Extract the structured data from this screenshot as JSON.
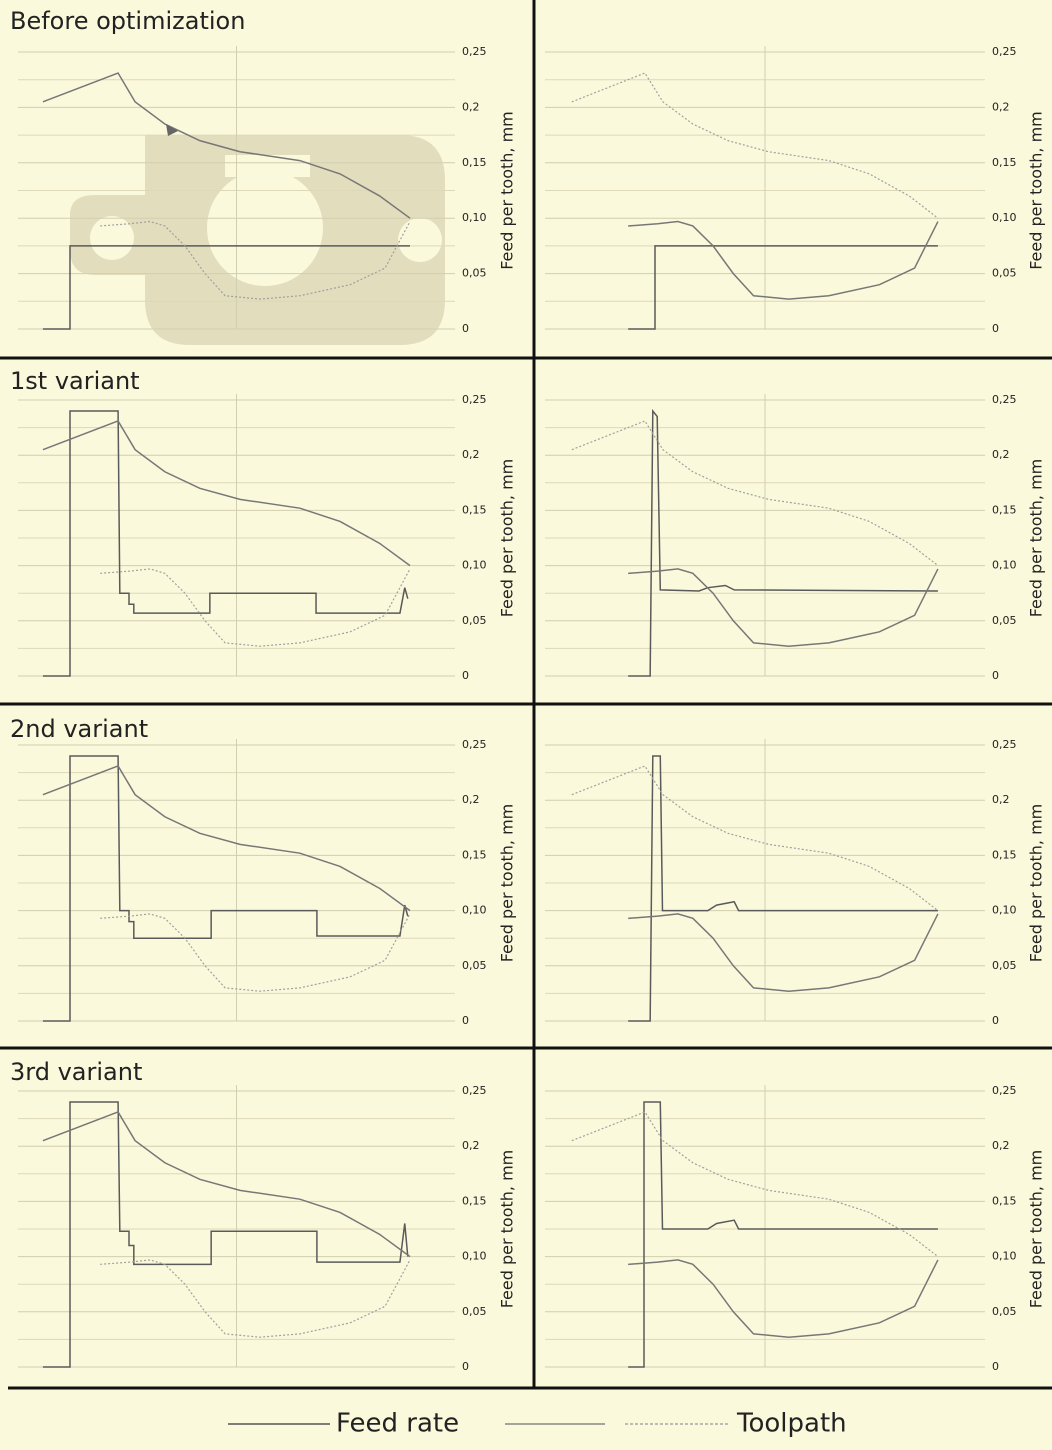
{
  "chart_data": [
    {
      "type": "line",
      "title": "Before optimization",
      "ylabel": "Feed per tooth, mm",
      "xlim": [
        0,
        100
      ],
      "ylim": [
        0,
        0.25
      ],
      "yticks": [
        0,
        {
          "value": 0.05,
          "label": "0,05"
        },
        {
          "value": 0.1,
          "label": "0,10"
        },
        {
          "value": 0.15,
          "label": "0,15"
        },
        {
          "value": 0.2,
          "label": "0,2"
        },
        {
          "value": 0.25,
          "label": "0,25"
        }
      ],
      "grid": true,
      "series": [
        {
          "name": "Feed rate",
          "color": "#5a5a5a",
          "style": "solid",
          "x": [
            5.7,
            11.9,
            11.9,
            89.7
          ],
          "values": [
            0,
            0,
            0.075,
            0.075
          ]
        },
        {
          "name": "Toolpath",
          "color": "#777777",
          "style": "solid",
          "x": [
            5.7,
            22.9,
            26.8,
            33.6,
            41.6,
            50.8,
            64.5,
            73.7,
            82.8,
            89.7
          ],
          "values": [
            0.205,
            0.231,
            0.205,
            0.185,
            0.17,
            0.16,
            0.152,
            0.14,
            0.12,
            0.1
          ]
        },
        {
          "name": "Toolpath",
          "color": "#a0a0a0",
          "style": "dotted",
          "x": [
            18.8,
            25.6,
            30.2,
            33.6,
            38.2,
            42.8,
            47.4,
            55.4,
            64.5,
            76,
            84,
            89.7
          ],
          "values": [
            0.093,
            0.095,
            0.097,
            0.093,
            0.075,
            0.05,
            0.03,
            0.027,
            0.03,
            0.04,
            0.055,
            0.097
          ]
        }
      ]
    },
    {
      "type": "line",
      "ylabel": "Feed per tooth, mm",
      "xlim": [
        0,
        100
      ],
      "ylim": [
        0,
        0.25
      ],
      "yticks": [
        0,
        {
          "value": 0.05,
          "label": "0,05"
        },
        {
          "value": 0.1,
          "label": "0,10"
        },
        {
          "value": 0.15,
          "label": "0,15"
        },
        {
          "value": 0.2,
          "label": "0,2"
        },
        {
          "value": 0.25,
          "label": "0,25"
        }
      ],
      "grid": true,
      "series": [
        {
          "name": "Feed rate",
          "color": "#5a5a5a",
          "style": "solid",
          "x": [
            18.9,
            25,
            25,
            89.3
          ],
          "values": [
            0,
            0,
            0.075,
            0.075
          ]
        },
        {
          "name": "Toolpath",
          "color": "#a0a0a0",
          "style": "dotted",
          "x": [
            6.1,
            22.7,
            26.8,
            33.6,
            41.6,
            50.8,
            64.5,
            73.7,
            82.8,
            89.3
          ],
          "values": [
            0.205,
            0.231,
            0.205,
            0.185,
            0.17,
            0.16,
            0.152,
            0.14,
            0.12,
            0.1
          ]
        },
        {
          "name": "Toolpath",
          "color": "#777777",
          "style": "solid",
          "x": [
            18.9,
            25.6,
            30.2,
            33.6,
            38.2,
            42.8,
            47.4,
            55.4,
            64.5,
            76,
            84,
            89.3
          ],
          "values": [
            0.093,
            0.095,
            0.097,
            0.093,
            0.075,
            0.05,
            0.03,
            0.027,
            0.03,
            0.04,
            0.055,
            0.097
          ]
        }
      ]
    },
    {
      "type": "line",
      "title": "1st variant",
      "ylabel": "Feed per tooth, mm",
      "xlim": [
        0,
        100
      ],
      "ylim": [
        0,
        0.25
      ],
      "yticks": [
        0,
        {
          "value": 0.05,
          "label": "0,05"
        },
        {
          "value": 0.1,
          "label": "0,10"
        },
        {
          "value": 0.15,
          "label": "0,15"
        },
        {
          "value": 0.2,
          "label": "0,2"
        },
        {
          "value": 0.25,
          "label": "0,25"
        }
      ],
      "grid": true,
      "series": [
        {
          "name": "Feed rate",
          "color": "#5a5a5a",
          "style": "solid",
          "x": [
            5.7,
            11.9,
            11.9,
            22.9,
            23.3,
            25.4,
            25.4,
            26.5,
            26.5,
            43.9,
            43.9,
            68.2,
            68.2,
            87.4,
            88.5,
            89.2
          ],
          "values": [
            0,
            0,
            0.24,
            0.24,
            0.075,
            0.075,
            0.065,
            0.065,
            0.057,
            0.057,
            0.075,
            0.075,
            0.057,
            0.057,
            0.08,
            0.07
          ]
        },
        {
          "name": "Toolpath",
          "color": "#777777",
          "style": "solid",
          "x": [
            5.7,
            22.9,
            26.8,
            33.6,
            41.6,
            50.8,
            64.5,
            73.7,
            82.8,
            89.7
          ],
          "values": [
            0.205,
            0.231,
            0.205,
            0.185,
            0.17,
            0.16,
            0.152,
            0.14,
            0.12,
            0.1
          ]
        },
        {
          "name": "Toolpath",
          "color": "#a0a0a0",
          "style": "dotted",
          "x": [
            18.8,
            25.6,
            30.2,
            33.6,
            38.2,
            42.8,
            47.4,
            55.4,
            64.5,
            76,
            84,
            89.7
          ],
          "values": [
            0.093,
            0.095,
            0.097,
            0.093,
            0.075,
            0.05,
            0.03,
            0.027,
            0.03,
            0.04,
            0.055,
            0.097
          ]
        }
      ]
    },
    {
      "type": "line",
      "ylabel": "Feed per tooth, mm",
      "xlim": [
        0,
        100
      ],
      "ylim": [
        0,
        0.25
      ],
      "yticks": [
        0,
        {
          "value": 0.05,
          "label": "0,05"
        },
        {
          "value": 0.1,
          "label": "0,10"
        },
        {
          "value": 0.15,
          "label": "0,15"
        },
        {
          "value": 0.2,
          "label": "0,2"
        },
        {
          "value": 0.25,
          "label": "0,25"
        }
      ],
      "grid": true,
      "series": [
        {
          "name": "Feed rate",
          "color": "#5a5a5a",
          "style": "solid",
          "x": [
            18.9,
            23.9,
            24.5,
            25.5,
            26.2,
            35,
            37,
            41,
            43,
            89.3
          ],
          "values": [
            0,
            0,
            0.24,
            0.235,
            0.078,
            0.077,
            0.08,
            0.082,
            0.078,
            0.077
          ]
        },
        {
          "name": "Toolpath",
          "color": "#a0a0a0",
          "style": "dotted",
          "x": [
            6.1,
            22.7,
            26.8,
            33.6,
            41.6,
            50.8,
            64.5,
            73.7,
            82.8,
            89.3
          ],
          "values": [
            0.205,
            0.231,
            0.205,
            0.185,
            0.17,
            0.16,
            0.152,
            0.14,
            0.12,
            0.1
          ]
        },
        {
          "name": "Toolpath",
          "color": "#777777",
          "style": "solid",
          "x": [
            18.9,
            25.6,
            30.2,
            33.6,
            38.2,
            42.8,
            47.4,
            55.4,
            64.5,
            76,
            84,
            89.3
          ],
          "values": [
            0.093,
            0.095,
            0.097,
            0.093,
            0.075,
            0.05,
            0.03,
            0.027,
            0.03,
            0.04,
            0.055,
            0.097
          ]
        }
      ]
    },
    {
      "type": "line",
      "title": "2nd variant",
      "ylabel": "Feed per tooth, mm",
      "xlim": [
        0,
        100
      ],
      "ylim": [
        0,
        0.25
      ],
      "yticks": [
        0,
        {
          "value": 0.05,
          "label": "0,05"
        },
        {
          "value": 0.1,
          "label": "0,10"
        },
        {
          "value": 0.15,
          "label": "0,15"
        },
        {
          "value": 0.2,
          "label": "0,2"
        },
        {
          "value": 0.25,
          "label": "0,25"
        }
      ],
      "grid": true,
      "series": [
        {
          "name": "Feed rate",
          "color": "#5a5a5a",
          "style": "solid",
          "x": [
            5.7,
            11.9,
            11.9,
            22.9,
            23.3,
            25.4,
            25.4,
            26.5,
            26.5,
            44.2,
            44.2,
            68.4,
            68.4,
            87.4,
            88.5,
            89.2
          ],
          "values": [
            0,
            0,
            0.24,
            0.24,
            0.1,
            0.1,
            0.09,
            0.09,
            0.075,
            0.075,
            0.1,
            0.1,
            0.077,
            0.077,
            0.105,
            0.095
          ]
        },
        {
          "name": "Toolpath",
          "color": "#777777",
          "style": "solid",
          "x": [
            5.7,
            22.9,
            26.8,
            33.6,
            41.6,
            50.8,
            64.5,
            73.7,
            82.8,
            89.7
          ],
          "values": [
            0.205,
            0.231,
            0.205,
            0.185,
            0.17,
            0.16,
            0.152,
            0.14,
            0.12,
            0.1
          ]
        },
        {
          "name": "Toolpath",
          "color": "#a0a0a0",
          "style": "dotted",
          "x": [
            18.8,
            25.6,
            30.2,
            33.6,
            38.2,
            42.8,
            47.4,
            55.4,
            64.5,
            76,
            84,
            89.7
          ],
          "values": [
            0.093,
            0.095,
            0.097,
            0.093,
            0.075,
            0.05,
            0.03,
            0.027,
            0.03,
            0.04,
            0.055,
            0.097
          ]
        }
      ]
    },
    {
      "type": "line",
      "ylabel": "Feed per tooth, mm",
      "xlim": [
        0,
        100
      ],
      "ylim": [
        0,
        0.25
      ],
      "yticks": [
        0,
        {
          "value": 0.05,
          "label": "0,05"
        },
        {
          "value": 0.1,
          "label": "0,10"
        },
        {
          "value": 0.15,
          "label": "0,15"
        },
        {
          "value": 0.2,
          "label": "0,2"
        },
        {
          "value": 0.25,
          "label": "0,25"
        }
      ],
      "grid": true,
      "series": [
        {
          "name": "Feed rate",
          "color": "#5a5a5a",
          "style": "solid",
          "x": [
            18.9,
            23.9,
            24.5,
            26.2,
            26.7,
            37,
            39,
            43,
            44,
            89.3
          ],
          "values": [
            0,
            0,
            0.24,
            0.24,
            0.1,
            0.1,
            0.105,
            0.108,
            0.1,
            0.1
          ]
        },
        {
          "name": "Toolpath",
          "color": "#a0a0a0",
          "style": "dotted",
          "x": [
            6.1,
            22.7,
            26.8,
            33.6,
            41.6,
            50.8,
            64.5,
            73.7,
            82.8,
            89.3
          ],
          "values": [
            0.205,
            0.231,
            0.205,
            0.185,
            0.17,
            0.16,
            0.152,
            0.14,
            0.12,
            0.1
          ]
        },
        {
          "name": "Toolpath",
          "color": "#777777",
          "style": "solid",
          "x": [
            18.9,
            25.6,
            30.2,
            33.6,
            38.2,
            42.8,
            47.4,
            55.4,
            64.5,
            76,
            84,
            89.3
          ],
          "values": [
            0.093,
            0.095,
            0.097,
            0.093,
            0.075,
            0.05,
            0.03,
            0.027,
            0.03,
            0.04,
            0.055,
            0.097
          ]
        }
      ]
    },
    {
      "type": "line",
      "title": "3rd variant",
      "ylabel": "Feed per tooth, mm",
      "xlim": [
        0,
        100
      ],
      "ylim": [
        0,
        0.25
      ],
      "yticks": [
        0,
        {
          "value": 0.05,
          "label": "0,05"
        },
        {
          "value": 0.1,
          "label": "0,10"
        },
        {
          "value": 0.15,
          "label": "0,15"
        },
        {
          "value": 0.2,
          "label": "0,2"
        },
        {
          "value": 0.25,
          "label": "0,25"
        }
      ],
      "grid": true,
      "series": [
        {
          "name": "Feed rate",
          "color": "#5a5a5a",
          "style": "solid",
          "x": [
            5.7,
            11.9,
            11.9,
            22.9,
            23.3,
            25.4,
            25.4,
            26.5,
            26.5,
            44.2,
            44.2,
            68.4,
            68.4,
            87.4,
            88.5,
            89.2
          ],
          "values": [
            0,
            0,
            0.24,
            0.24,
            0.123,
            0.123,
            0.11,
            0.11,
            0.093,
            0.093,
            0.123,
            0.123,
            0.095,
            0.095,
            0.13,
            0.1
          ]
        },
        {
          "name": "Toolpath",
          "color": "#777777",
          "style": "solid",
          "x": [
            5.7,
            22.9,
            26.8,
            33.6,
            41.6,
            50.8,
            64.5,
            73.7,
            82.8,
            89.7
          ],
          "values": [
            0.205,
            0.231,
            0.205,
            0.185,
            0.17,
            0.16,
            0.152,
            0.14,
            0.12,
            0.1
          ]
        },
        {
          "name": "Toolpath",
          "color": "#a0a0a0",
          "style": "dotted",
          "x": [
            18.8,
            25.6,
            30.2,
            33.6,
            38.2,
            42.8,
            47.4,
            55.4,
            64.5,
            76,
            84,
            89.7
          ],
          "values": [
            0.093,
            0.095,
            0.097,
            0.093,
            0.075,
            0.05,
            0.03,
            0.027,
            0.03,
            0.04,
            0.055,
            0.097
          ]
        }
      ]
    },
    {
      "type": "line",
      "ylabel": "Feed per tooth, mm",
      "xlim": [
        0,
        100
      ],
      "ylim": [
        0,
        0.25
      ],
      "yticks": [
        0,
        {
          "value": 0.05,
          "label": "0,05"
        },
        {
          "value": 0.1,
          "label": "0,10"
        },
        {
          "value": 0.15,
          "label": "0,15"
        },
        {
          "value": 0.2,
          "label": "0,2"
        },
        {
          "value": 0.25,
          "label": "0,25"
        }
      ],
      "grid": true,
      "series": [
        {
          "name": "Feed rate",
          "color": "#5a5a5a",
          "style": "solid",
          "x": [
            18.9,
            22.5,
            22.5,
            26.2,
            26.7,
            37,
            39,
            43,
            44,
            89.3
          ],
          "values": [
            0,
            0,
            0.24,
            0.24,
            0.125,
            0.125,
            0.13,
            0.133,
            0.125,
            0.125
          ]
        },
        {
          "name": "Toolpath",
          "color": "#a0a0a0",
          "style": "dotted",
          "x": [
            6.1,
            22.7,
            26.8,
            33.6,
            41.6,
            50.8,
            64.5,
            73.7,
            82.8,
            89.3
          ],
          "values": [
            0.205,
            0.231,
            0.205,
            0.185,
            0.17,
            0.16,
            0.152,
            0.14,
            0.12,
            0.1
          ]
        },
        {
          "name": "Toolpath",
          "color": "#777777",
          "style": "solid",
          "x": [
            18.9,
            25.6,
            30.2,
            33.6,
            38.2,
            42.8,
            47.4,
            55.4,
            64.5,
            76,
            84,
            89.3
          ],
          "values": [
            0.093,
            0.095,
            0.097,
            0.093,
            0.075,
            0.05,
            0.03,
            0.027,
            0.03,
            0.04,
            0.055,
            0.097
          ]
        }
      ]
    }
  ]
}
